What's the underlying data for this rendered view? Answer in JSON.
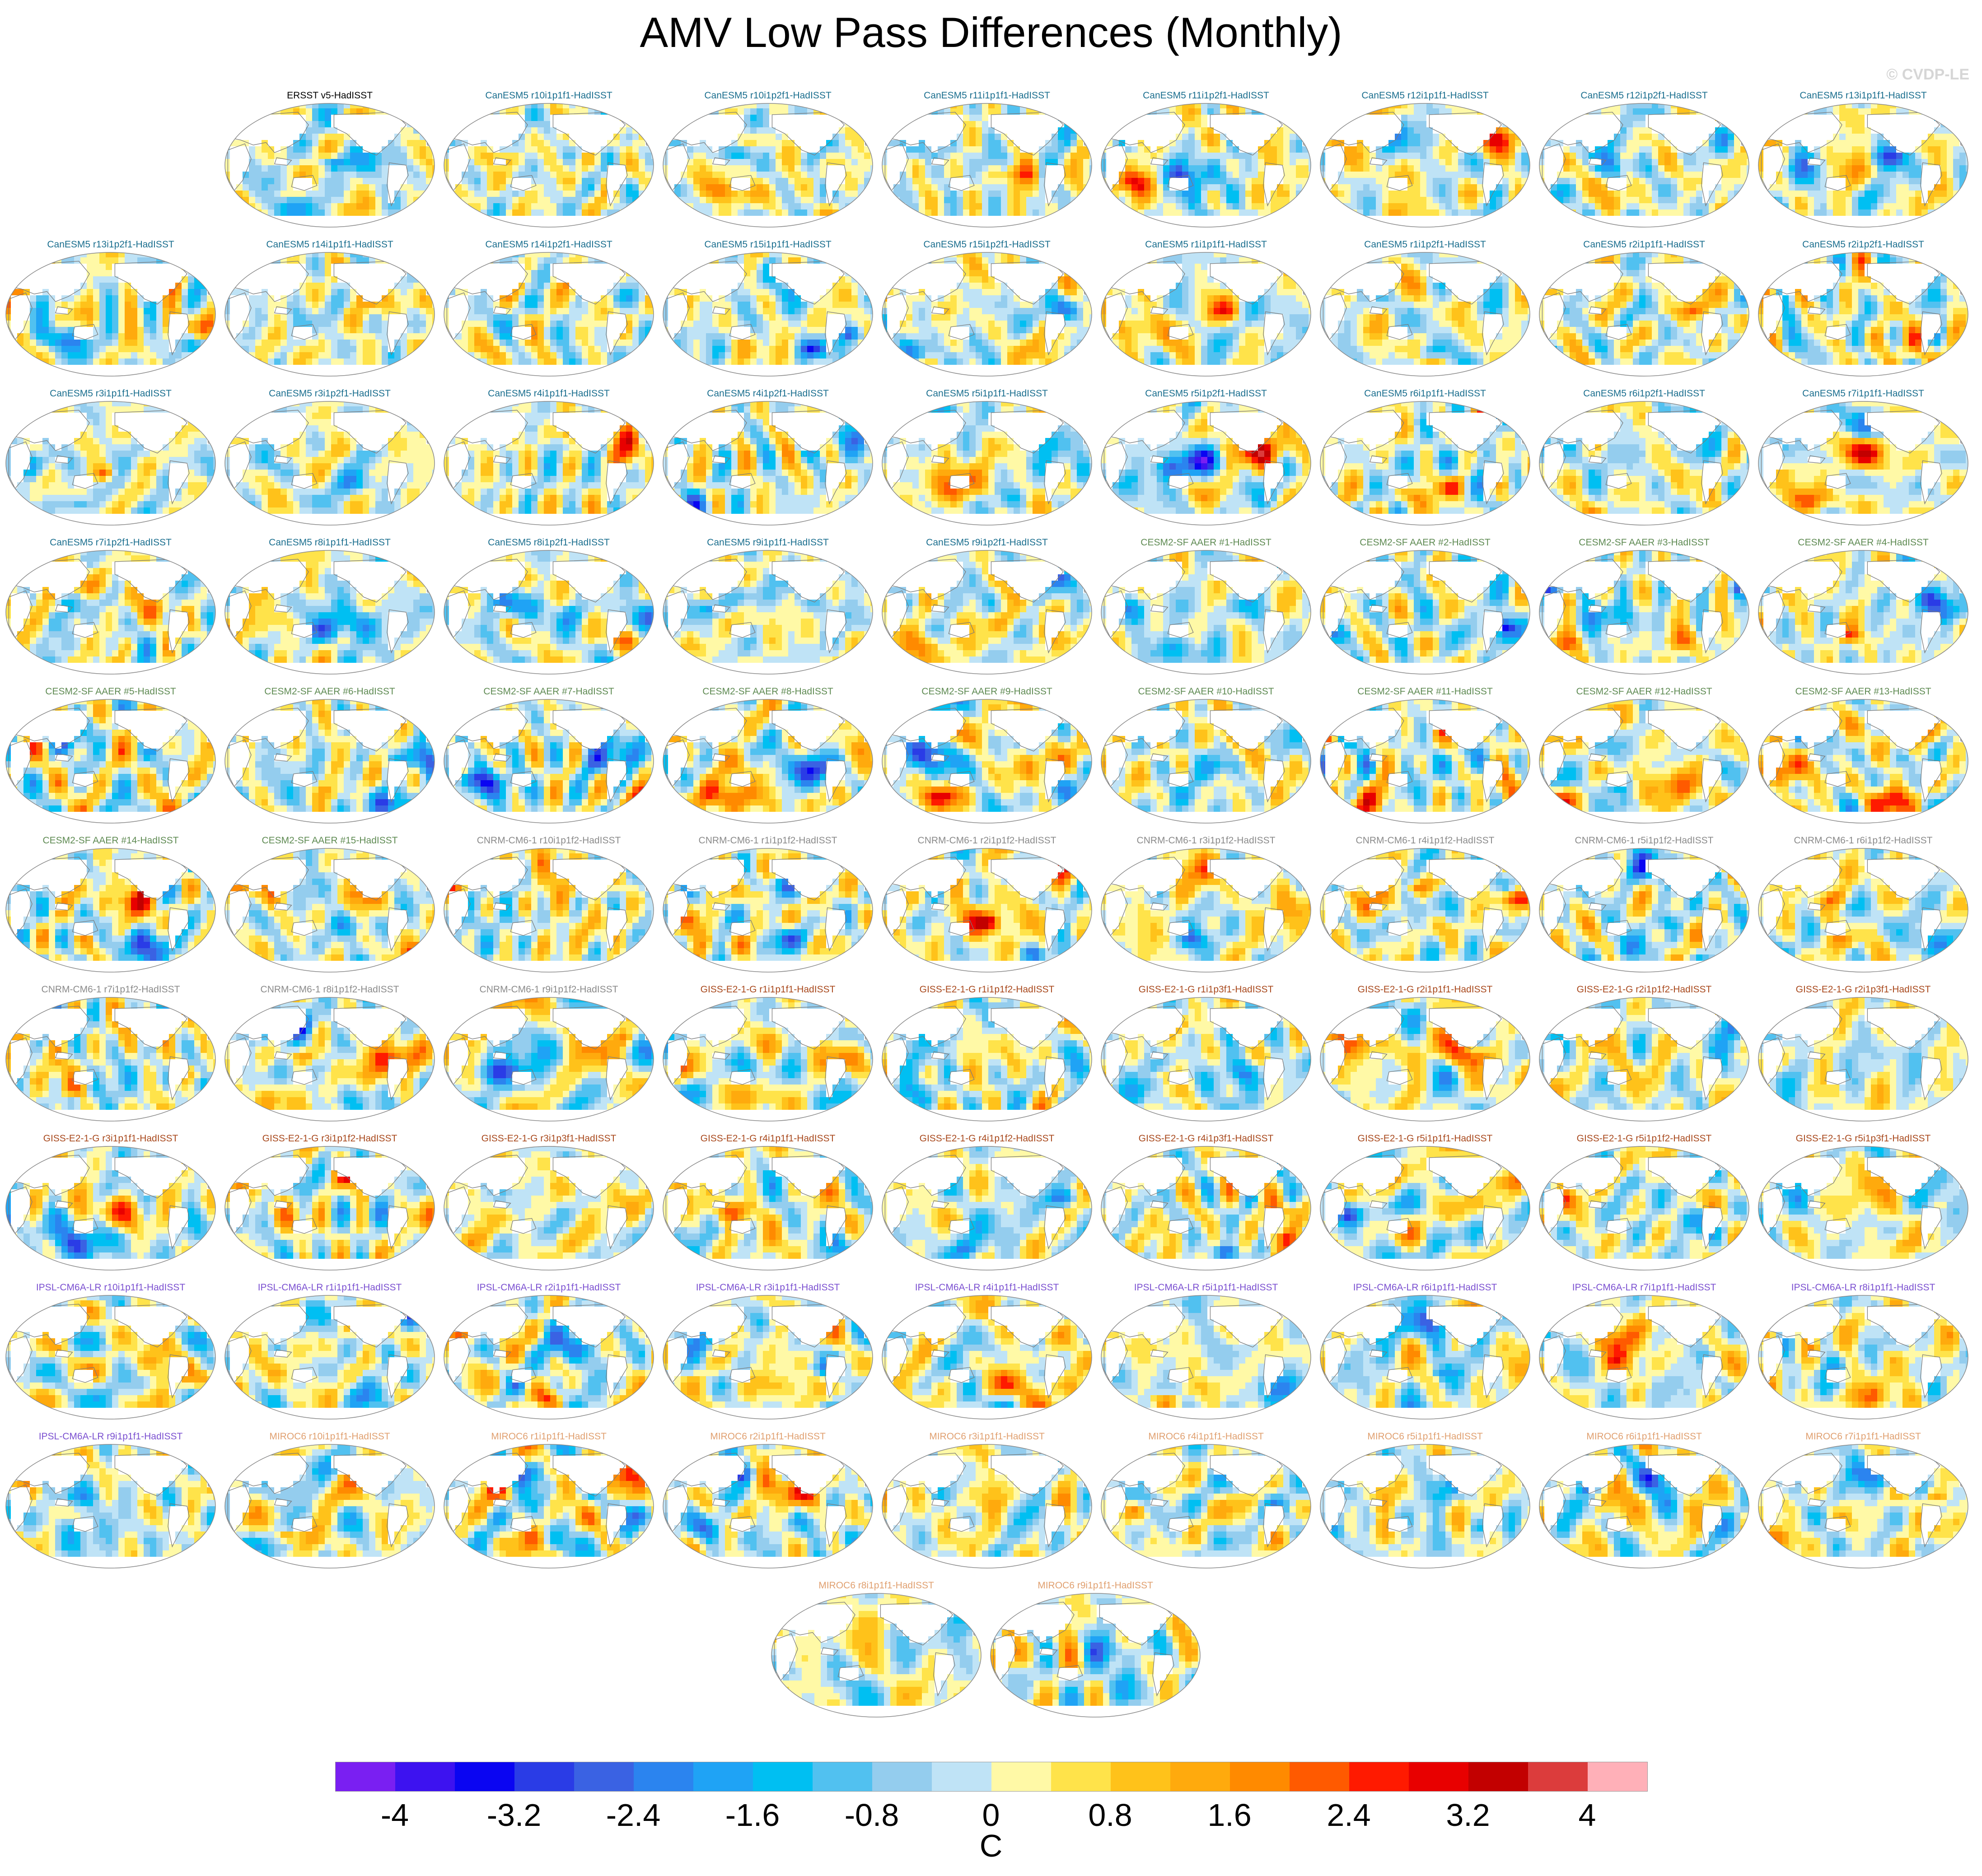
{
  "title": "AMV Low Pass Differences (Monthly)",
  "credit": "© CVDP-LE",
  "colorbar": {
    "units": "C",
    "tick_labels": [
      "-4",
      "-3.2",
      "-2.4",
      "-1.6",
      "-0.8",
      "0",
      "0.8",
      "1.6",
      "2.4",
      "3.2",
      "4"
    ],
    "colors": [
      "#7a1ff2",
      "#3d12f0",
      "#0a05f2",
      "#2a3ce6",
      "#3a62e3",
      "#2b84ef",
      "#1fa3f5",
      "#00bff2",
      "#51c1f0",
      "#94cdee",
      "#bfe3f6",
      "#fff9a6",
      "#ffe34a",
      "#ffc21a",
      "#ffaa0d",
      "#ff8a00",
      "#ff5a00",
      "#ff1a00",
      "#e80000",
      "#c20000",
      "#dc3c3c",
      "#ffb0b8"
    ]
  },
  "palette_colors": {
    "obs": "#000000",
    "CanESM5": "#1a6e8e",
    "CESM2": "#5e8a52",
    "CNRM": "#8a8a8a",
    "GISS": "#a8481c",
    "IPSL": "#7a4fd0",
    "MIROC": "#e0a070"
  },
  "panels": [
    {
      "title": "ERSST v5-HadISST",
      "group": "obs"
    },
    {
      "title": "CanESM5 r10i1p1f1-HadISST",
      "group": "CanESM5"
    },
    {
      "title": "CanESM5 r10i1p2f1-HadISST",
      "group": "CanESM5"
    },
    {
      "title": "CanESM5 r11i1p1f1-HadISST",
      "group": "CanESM5"
    },
    {
      "title": "CanESM5 r11i1p2f1-HadISST",
      "group": "CanESM5"
    },
    {
      "title": "CanESM5 r12i1p1f1-HadISST",
      "group": "CanESM5"
    },
    {
      "title": "CanESM5 r12i1p2f1-HadISST",
      "group": "CanESM5"
    },
    {
      "title": "CanESM5 r13i1p1f1-HadISST",
      "group": "CanESM5"
    },
    {
      "title": "CanESM5 r13i1p2f1-HadISST",
      "group": "CanESM5"
    },
    {
      "title": "CanESM5 r14i1p1f1-HadISST",
      "group": "CanESM5"
    },
    {
      "title": "CanESM5 r14i1p2f1-HadISST",
      "group": "CanESM5"
    },
    {
      "title": "CanESM5 r15i1p1f1-HadISST",
      "group": "CanESM5"
    },
    {
      "title": "CanESM5 r15i1p2f1-HadISST",
      "group": "CanESM5"
    },
    {
      "title": "CanESM5 r1i1p1f1-HadISST",
      "group": "CanESM5"
    },
    {
      "title": "CanESM5 r1i1p2f1-HadISST",
      "group": "CanESM5"
    },
    {
      "title": "CanESM5 r2i1p1f1-HadISST",
      "group": "CanESM5"
    },
    {
      "title": "CanESM5 r2i1p2f1-HadISST",
      "group": "CanESM5"
    },
    {
      "title": "CanESM5 r3i1p1f1-HadISST",
      "group": "CanESM5"
    },
    {
      "title": "CanESM5 r3i1p2f1-HadISST",
      "group": "CanESM5"
    },
    {
      "title": "CanESM5 r4i1p1f1-HadISST",
      "group": "CanESM5"
    },
    {
      "title": "CanESM5 r4i1p2f1-HadISST",
      "group": "CanESM5"
    },
    {
      "title": "CanESM5 r5i1p1f1-HadISST",
      "group": "CanESM5"
    },
    {
      "title": "CanESM5 r5i1p2f1-HadISST",
      "group": "CanESM5"
    },
    {
      "title": "CanESM5 r6i1p1f1-HadISST",
      "group": "CanESM5"
    },
    {
      "title": "CanESM5 r6i1p2f1-HadISST",
      "group": "CanESM5"
    },
    {
      "title": "CanESM5 r7i1p1f1-HadISST",
      "group": "CanESM5"
    },
    {
      "title": "CanESM5 r7i1p2f1-HadISST",
      "group": "CanESM5"
    },
    {
      "title": "CanESM5 r8i1p1f1-HadISST",
      "group": "CanESM5"
    },
    {
      "title": "CanESM5 r8i1p2f1-HadISST",
      "group": "CanESM5"
    },
    {
      "title": "CanESM5 r9i1p1f1-HadISST",
      "group": "CanESM5"
    },
    {
      "title": "CanESM5 r9i1p2f1-HadISST",
      "group": "CanESM5"
    },
    {
      "title": "CESM2-SF AAER #1-HadISST",
      "group": "CESM2"
    },
    {
      "title": "CESM2-SF AAER #2-HadISST",
      "group": "CESM2"
    },
    {
      "title": "CESM2-SF AAER #3-HadISST",
      "group": "CESM2"
    },
    {
      "title": "CESM2-SF AAER #4-HadISST",
      "group": "CESM2"
    },
    {
      "title": "CESM2-SF AAER #5-HadISST",
      "group": "CESM2"
    },
    {
      "title": "CESM2-SF AAER #6-HadISST",
      "group": "CESM2"
    },
    {
      "title": "CESM2-SF AAER #7-HadISST",
      "group": "CESM2"
    },
    {
      "title": "CESM2-SF AAER #8-HadISST",
      "group": "CESM2"
    },
    {
      "title": "CESM2-SF AAER #9-HadISST",
      "group": "CESM2"
    },
    {
      "title": "CESM2-SF AAER #10-HadISST",
      "group": "CESM2"
    },
    {
      "title": "CESM2-SF AAER #11-HadISST",
      "group": "CESM2"
    },
    {
      "title": "CESM2-SF AAER #12-HadISST",
      "group": "CESM2"
    },
    {
      "title": "CESM2-SF AAER #13-HadISST",
      "group": "CESM2"
    },
    {
      "title": "CESM2-SF AAER #14-HadISST",
      "group": "CESM2"
    },
    {
      "title": "CESM2-SF AAER #15-HadISST",
      "group": "CESM2"
    },
    {
      "title": "CNRM-CM6-1 r10i1p1f2-HadISST",
      "group": "CNRM"
    },
    {
      "title": "CNRM-CM6-1 r1i1p1f2-HadISST",
      "group": "CNRM"
    },
    {
      "title": "CNRM-CM6-1 r2i1p1f2-HadISST",
      "group": "CNRM"
    },
    {
      "title": "CNRM-CM6-1 r3i1p1f2-HadISST",
      "group": "CNRM"
    },
    {
      "title": "CNRM-CM6-1 r4i1p1f2-HadISST",
      "group": "CNRM"
    },
    {
      "title": "CNRM-CM6-1 r5i1p1f2-HadISST",
      "group": "CNRM"
    },
    {
      "title": "CNRM-CM6-1 r6i1p1f2-HadISST",
      "group": "CNRM"
    },
    {
      "title": "CNRM-CM6-1 r7i1p1f2-HadISST",
      "group": "CNRM"
    },
    {
      "title": "CNRM-CM6-1 r8i1p1f2-HadISST",
      "group": "CNRM"
    },
    {
      "title": "CNRM-CM6-1 r9i1p1f2-HadISST",
      "group": "CNRM"
    },
    {
      "title": "GISS-E2-1-G r1i1p1f1-HadISST",
      "group": "GISS"
    },
    {
      "title": "GISS-E2-1-G r1i1p1f2-HadISST",
      "group": "GISS"
    },
    {
      "title": "GISS-E2-1-G r1i1p3f1-HadISST",
      "group": "GISS"
    },
    {
      "title": "GISS-E2-1-G r2i1p1f1-HadISST",
      "group": "GISS"
    },
    {
      "title": "GISS-E2-1-G r2i1p1f2-HadISST",
      "group": "GISS"
    },
    {
      "title": "GISS-E2-1-G r2i1p3f1-HadISST",
      "group": "GISS"
    },
    {
      "title": "GISS-E2-1-G r3i1p1f1-HadISST",
      "group": "GISS"
    },
    {
      "title": "GISS-E2-1-G r3i1p1f2-HadISST",
      "group": "GISS"
    },
    {
      "title": "GISS-E2-1-G r3i1p3f1-HadISST",
      "group": "GISS"
    },
    {
      "title": "GISS-E2-1-G r4i1p1f1-HadISST",
      "group": "GISS"
    },
    {
      "title": "GISS-E2-1-G r4i1p1f2-HadISST",
      "group": "GISS"
    },
    {
      "title": "GISS-E2-1-G r4i1p3f1-HadISST",
      "group": "GISS"
    },
    {
      "title": "GISS-E2-1-G r5i1p1f1-HadISST",
      "group": "GISS"
    },
    {
      "title": "GISS-E2-1-G r5i1p1f2-HadISST",
      "group": "GISS"
    },
    {
      "title": "GISS-E2-1-G r5i1p3f1-HadISST",
      "group": "GISS"
    },
    {
      "title": "IPSL-CM6A-LR r10i1p1f1-HadISST",
      "group": "IPSL"
    },
    {
      "title": "IPSL-CM6A-LR r1i1p1f1-HadISST",
      "group": "IPSL"
    },
    {
      "title": "IPSL-CM6A-LR r2i1p1f1-HadISST",
      "group": "IPSL"
    },
    {
      "title": "IPSL-CM6A-LR r3i1p1f1-HadISST",
      "group": "IPSL"
    },
    {
      "title": "IPSL-CM6A-LR r4i1p1f1-HadISST",
      "group": "IPSL"
    },
    {
      "title": "IPSL-CM6A-LR r5i1p1f1-HadISST",
      "group": "IPSL"
    },
    {
      "title": "IPSL-CM6A-LR r6i1p1f1-HadISST",
      "group": "IPSL"
    },
    {
      "title": "IPSL-CM6A-LR r7i1p1f1-HadISST",
      "group": "IPSL"
    },
    {
      "title": "IPSL-CM6A-LR r8i1p1f1-HadISST",
      "group": "IPSL"
    },
    {
      "title": "IPSL-CM6A-LR r9i1p1f1-HadISST",
      "group": "IPSL"
    },
    {
      "title": "MIROC6 r10i1p1f1-HadISST",
      "group": "MIROC"
    },
    {
      "title": "MIROC6 r1i1p1f1-HadISST",
      "group": "MIROC"
    },
    {
      "title": "MIROC6 r2i1p1f1-HadISST",
      "group": "MIROC"
    },
    {
      "title": "MIROC6 r3i1p1f1-HadISST",
      "group": "MIROC"
    },
    {
      "title": "MIROC6 r4i1p1f1-HadISST",
      "group": "MIROC"
    },
    {
      "title": "MIROC6 r5i1p1f1-HadISST",
      "group": "MIROC"
    },
    {
      "title": "MIROC6 r6i1p1f1-HadISST",
      "group": "MIROC"
    },
    {
      "title": "MIROC6 r7i1p1f1-HadISST",
      "group": "MIROC"
    },
    {
      "title": "MIROC6 r8i1p1f1-HadISST",
      "group": "MIROC"
    },
    {
      "title": "MIROC6 r9i1p1f1-HadISST",
      "group": "MIROC"
    }
  ]
}
